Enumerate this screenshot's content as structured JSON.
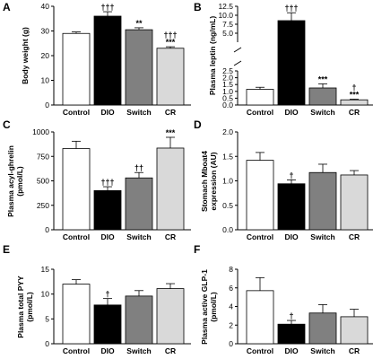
{
  "chart_data": [
    {
      "panel": "A",
      "type": "bar",
      "ylabel": "Body weight (g)",
      "categories": [
        "Control",
        "DIO",
        "Switch",
        "CR"
      ],
      "values": [
        29,
        36,
        30.5,
        23
      ],
      "errors": [
        0.6,
        1.8,
        0.8,
        0.6
      ],
      "significance": [
        "",
        "†††",
        "**",
        "†††\n***"
      ],
      "ylim": [
        0,
        40
      ],
      "yticks": [
        0,
        10,
        20,
        30,
        40
      ],
      "colors": [
        "#ffffff",
        "#000000",
        "#808080",
        "#d9d9d9"
      ]
    },
    {
      "panel": "B",
      "type": "bar",
      "ylabel": "Plasma leptin (ng/mL)",
      "categories": [
        "Control",
        "DIO",
        "Switch",
        "CR"
      ],
      "values": [
        1.15,
        8.5,
        1.25,
        0.38
      ],
      "errors": [
        0.15,
        2.2,
        0.3,
        0.05
      ],
      "significance": [
        "",
        "†††",
        "***",
        "†\n***"
      ],
      "ylim": [
        0,
        12.5
      ],
      "yticks": [
        0,
        0.5,
        1.0,
        1.5,
        2.0,
        2.5,
        5.0,
        7.5,
        10.0,
        12.5
      ],
      "broken_axis": {
        "lower": [
          0,
          2.5
        ],
        "upper": [
          2.5,
          12.5
        ]
      },
      "colors": [
        "#ffffff",
        "#000000",
        "#808080",
        "#d9d9d9"
      ]
    },
    {
      "panel": "C",
      "type": "bar",
      "ylabel": "Plasma acyl-ghrelin (pmol/L)",
      "categories": [
        "Control",
        "DIO",
        "Switch",
        "CR"
      ],
      "values": [
        830,
        400,
        530,
        835
      ],
      "errors": [
        75,
        40,
        55,
        110
      ],
      "significance": [
        "",
        "†††",
        "††",
        "***"
      ],
      "ylim": [
        0,
        1000
      ],
      "yticks": [
        0,
        250,
        500,
        750,
        1000
      ],
      "colors": [
        "#ffffff",
        "#000000",
        "#808080",
        "#d9d9d9"
      ]
    },
    {
      "panel": "D",
      "type": "bar",
      "ylabel": "Stomach Mboat4 expression (AU)",
      "categories": [
        "Control",
        "DIO",
        "Switch",
        "CR"
      ],
      "values": [
        1.42,
        0.94,
        1.17,
        1.12
      ],
      "errors": [
        0.16,
        0.08,
        0.17,
        0.09
      ],
      "significance": [
        "",
        "†",
        "",
        ""
      ],
      "ylim": [
        0,
        2.0
      ],
      "yticks": [
        0,
        0.5,
        1.0,
        1.5,
        2.0
      ],
      "colors": [
        "#ffffff",
        "#000000",
        "#808080",
        "#d9d9d9"
      ]
    },
    {
      "panel": "E",
      "type": "bar",
      "ylabel": "Plasma total PYY (pmol/L)",
      "categories": [
        "Control",
        "DIO",
        "Switch",
        "CR"
      ],
      "values": [
        12.0,
        7.8,
        9.6,
        11.1
      ],
      "errors": [
        0.9,
        1.3,
        1.1,
        1.0
      ],
      "significance": [
        "",
        "†",
        "",
        ""
      ],
      "ylim": [
        0,
        15
      ],
      "yticks": [
        0,
        5,
        10,
        15
      ],
      "colors": [
        "#ffffff",
        "#000000",
        "#808080",
        "#d9d9d9"
      ]
    },
    {
      "panel": "F",
      "type": "bar",
      "ylabel": "Plasma active GLP-1 (pmol/L)",
      "categories": [
        "Control",
        "DIO",
        "Switch",
        "CR"
      ],
      "values": [
        5.7,
        2.1,
        3.3,
        2.9
      ],
      "errors": [
        1.4,
        0.4,
        0.9,
        0.8
      ],
      "significance": [
        "",
        "†",
        "",
        ""
      ],
      "ylim": [
        0,
        8
      ],
      "yticks": [
        0,
        2,
        4,
        6,
        8
      ],
      "colors": [
        "#ffffff",
        "#000000",
        "#808080",
        "#d9d9d9"
      ]
    }
  ]
}
